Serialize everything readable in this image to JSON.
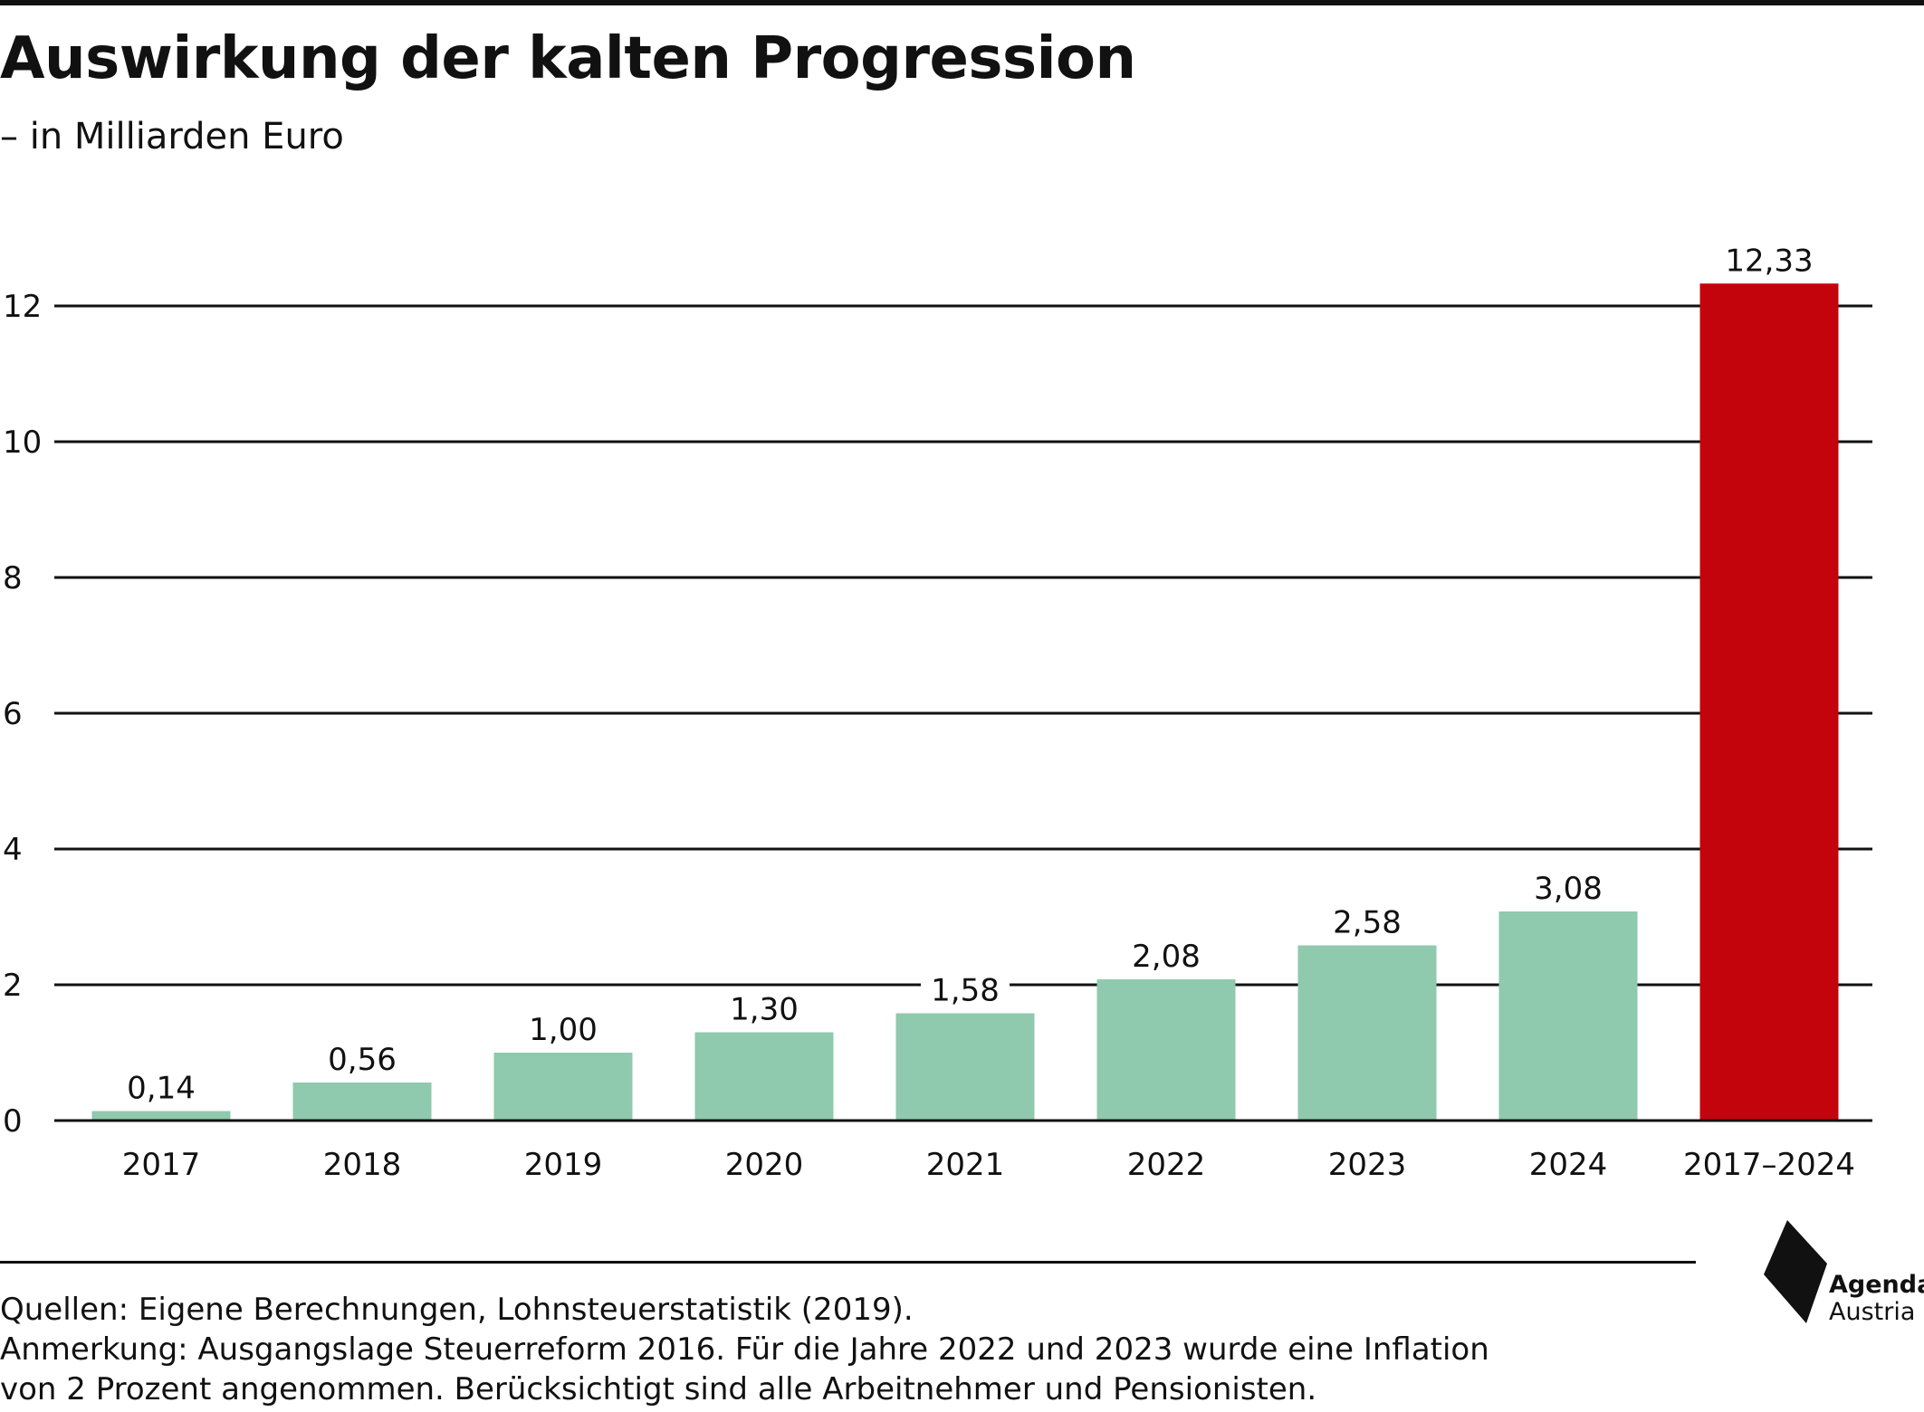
{
  "title": "Auswirkung der kalten Progression",
  "subtitle": "– in Milliarden Euro",
  "chart_data": {
    "type": "bar",
    "title": "Auswirkung der kalten Progression",
    "subtitle": "– in Milliarden Euro",
    "categories": [
      "2017",
      "2018",
      "2019",
      "2020",
      "2021",
      "2022",
      "2023",
      "2024",
      "2017–2024"
    ],
    "values": [
      0.14,
      0.56,
      1.0,
      1.3,
      1.58,
      2.08,
      2.58,
      3.08,
      12.33
    ],
    "value_labels": [
      "0,14",
      "0,56",
      "1,00",
      "1,30",
      "1,58",
      "2,08",
      "2,58",
      "3,08",
      "12,33"
    ],
    "ylim": [
      0,
      12.4
    ],
    "yticks": [
      0,
      2,
      4,
      6,
      8,
      10,
      12
    ],
    "ytick_labels": [
      "0",
      "2",
      "4",
      "6",
      "8",
      "10",
      "12"
    ],
    "grid": true,
    "legend": "none",
    "colors": {
      "default": "#8fc9ae",
      "highlight": "#c4040d",
      "highlight_index": 8,
      "grid": "#111111",
      "text": "#111111"
    }
  },
  "notes": {
    "sources": "Quellen: Eigene Berechnungen, Lohnsteuerstatistik (2019).",
    "remark_line1": "Anmerkung: Ausgangslage Steuerreform 2016. Für die Jahre 2022 und 2023 wurde eine Inflation",
    "remark_line2": "von 2 Prozent angenommen. Berücksichtigt sind alle Arbeitnehmer und Pensionisten."
  },
  "logo": {
    "line1": "Agenda",
    "line2": "Austria",
    "icon": "agenda-austria-logo-icon"
  }
}
